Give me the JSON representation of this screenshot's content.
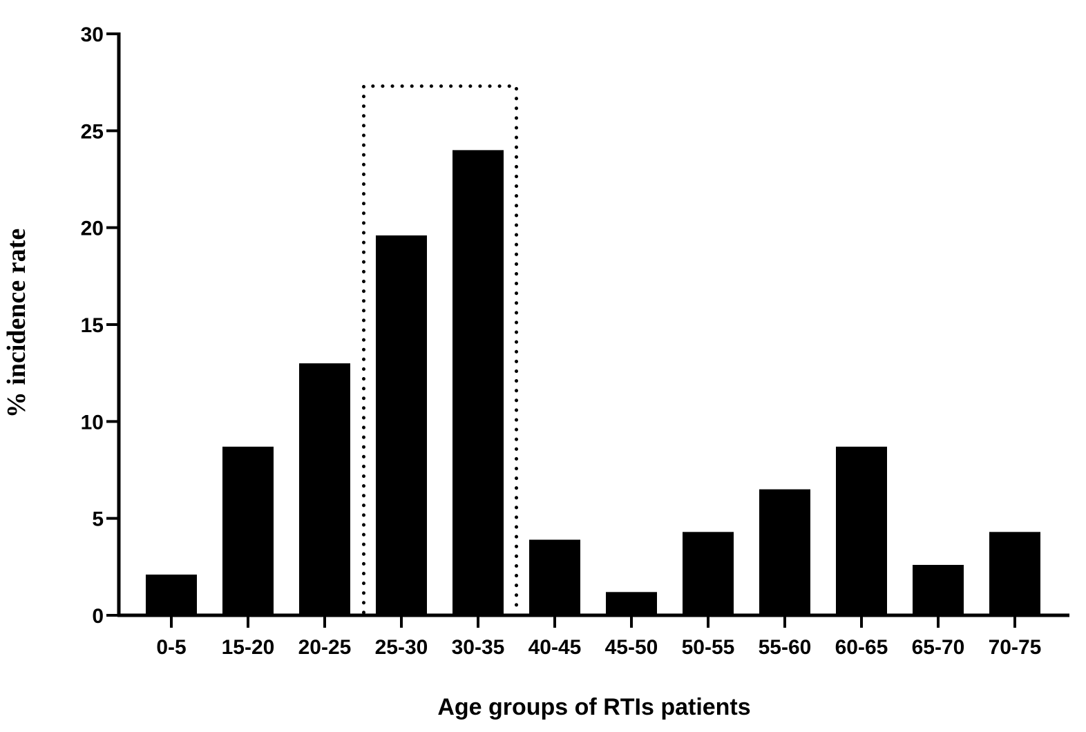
{
  "chart_data": {
    "type": "bar",
    "categories": [
      "0-5",
      "15-20",
      "20-25",
      "25-30",
      "30-35",
      "40-45",
      "45-50",
      "50-55",
      "55-60",
      "60-65",
      "65-70",
      "70-75"
    ],
    "values": [
      2.1,
      8.7,
      13.0,
      19.6,
      24.0,
      3.9,
      1.2,
      4.3,
      6.5,
      8.7,
      2.6,
      4.3
    ],
    "xlabel": "Age groups of RTIs patients",
    "ylabel": "% incidence rate",
    "ylim": [
      0,
      30
    ],
    "yticks": [
      0,
      5,
      10,
      15,
      20,
      25,
      30
    ],
    "grid": false,
    "highlight": {
      "style": "dotted box",
      "categories": [
        "25-30",
        "30-35"
      ],
      "top_value": 27.3
    },
    "colors": {
      "bars": "#000000",
      "axes": "#000000"
    }
  }
}
